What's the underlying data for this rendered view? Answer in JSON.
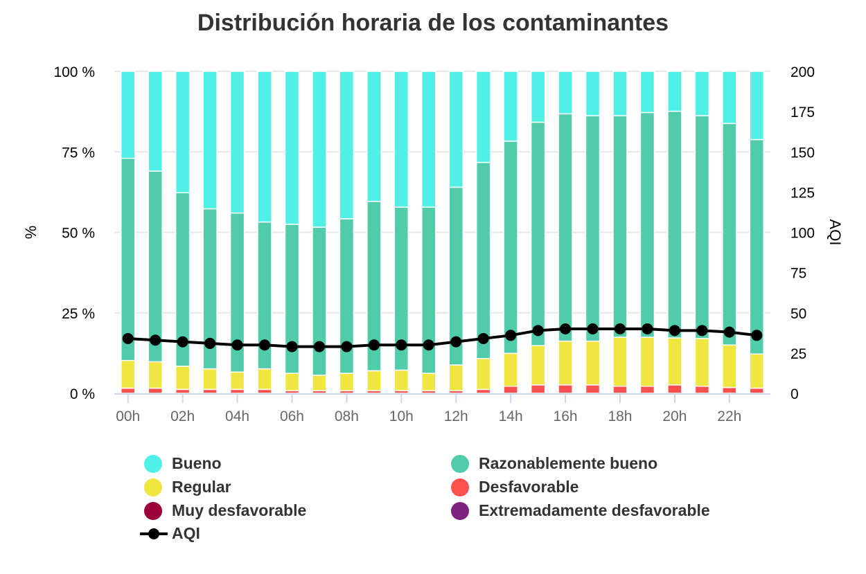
{
  "chart_data": {
    "type": "bar",
    "stacked": true,
    "title": "Distribución horaria de los contaminantes",
    "ylabel": "%",
    "ylabel_right": "AQI",
    "ylim": [
      0,
      100
    ],
    "ylim_right": [
      0,
      200
    ],
    "y_ticks": [
      "0 %",
      "25 %",
      "50 %",
      "75 %",
      "100 %"
    ],
    "y_ticks_right": [
      "0",
      "25",
      "50",
      "75",
      "100",
      "125",
      "150",
      "175",
      "200"
    ],
    "x_ticks": [
      "00h",
      "02h",
      "04h",
      "06h",
      "08h",
      "10h",
      "12h",
      "14h",
      "16h",
      "18h",
      "20h",
      "22h"
    ],
    "categories": [
      "00h",
      "01h",
      "02h",
      "03h",
      "04h",
      "05h",
      "06h",
      "07h",
      "08h",
      "09h",
      "10h",
      "11h",
      "12h",
      "13h",
      "14h",
      "15h",
      "16h",
      "17h",
      "18h",
      "19h",
      "20h",
      "21h",
      "22h",
      "23h"
    ],
    "grid": true,
    "legend_position": "bottom",
    "series": [
      {
        "name": "Muy desfavorable",
        "color": "#9b0039",
        "values": [
          0,
          0,
          0,
          0,
          0,
          0,
          0,
          0,
          0,
          0,
          0,
          0,
          0,
          0,
          0,
          0,
          0,
          0,
          0,
          0,
          0,
          0,
          0,
          0
        ]
      },
      {
        "name": "Extremadamente desfavorable",
        "color": "#7e2282",
        "values": [
          0,
          0,
          0,
          0,
          0,
          0,
          0,
          0,
          0,
          0,
          0,
          0,
          0,
          0,
          0,
          0,
          0,
          0,
          0,
          0,
          0,
          0,
          0,
          0
        ]
      },
      {
        "name": "Desfavorable",
        "color": "#ff5050",
        "values": [
          1.6,
          1.6,
          1.2,
          1.2,
          1.2,
          1.2,
          0.8,
          0.8,
          0.8,
          0.8,
          0.8,
          0.8,
          0.8,
          1.2,
          2.2,
          2.6,
          2.6,
          2.6,
          2.2,
          2.2,
          2.6,
          2.2,
          1.8,
          1.6
        ]
      },
      {
        "name": "Regular",
        "color": "#f0e641",
        "values": [
          8.6,
          8.2,
          7.2,
          6.4,
          5.4,
          6.4,
          5.4,
          4.8,
          5.4,
          6.2,
          6.4,
          5.4,
          8.0,
          9.6,
          10.2,
          12.2,
          13.6,
          13.6,
          15.2,
          15.2,
          14.6,
          14.8,
          13.2,
          10.6
        ]
      },
      {
        "name": "Razonablemente bueno",
        "color": "#50ccaa",
        "values": [
          62.8,
          59.2,
          53.9,
          49.7,
          49.4,
          45.6,
          46.3,
          46.0,
          48.0,
          52.6,
          50.6,
          51.6,
          55.2,
          60.9,
          65.9,
          69.4,
          70.6,
          70.0,
          68.8,
          69.8,
          70.4,
          69.2,
          68.8,
          66.6
        ]
      },
      {
        "name": "Bueno",
        "color": "#50f0e6",
        "values": [
          27.0,
          31.0,
          37.7,
          42.7,
          44.0,
          46.8,
          47.5,
          48.4,
          45.8,
          40.4,
          42.2,
          42.2,
          36.0,
          28.3,
          21.7,
          15.8,
          13.2,
          13.8,
          13.8,
          12.8,
          12.4,
          13.8,
          16.2,
          21.2
        ]
      }
    ],
    "aqi": {
      "name": "AQI",
      "color": "#000000",
      "values": [
        34,
        33,
        32,
        31,
        30,
        30,
        29,
        29,
        29,
        30,
        30,
        30,
        32,
        34,
        36,
        39,
        40,
        40,
        40,
        40,
        39,
        39,
        38,
        36
      ]
    },
    "legend_order": [
      "Bueno",
      "Razonablemente bueno",
      "Regular",
      "Desfavorable",
      "Muy desfavorable",
      "Extremadamente desfavorable",
      "AQI"
    ]
  }
}
